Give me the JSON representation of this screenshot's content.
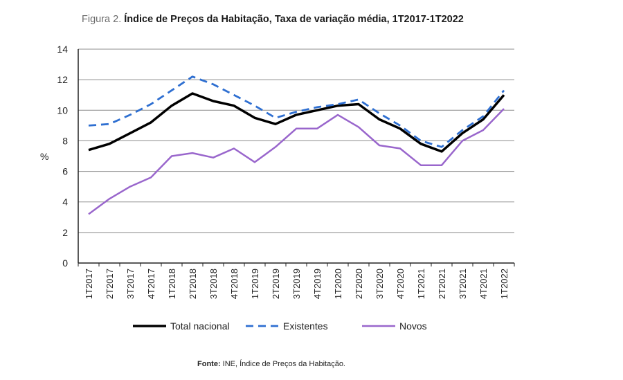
{
  "figure": {
    "label": "Figura 2.",
    "title": "Índice de Preços da Habitação, Taxa de variação média, 1T2017-1T2022"
  },
  "source": {
    "label": "Fonte:",
    "text": "INE, Índice de Preços da Habitação."
  },
  "chart_data": {
    "type": "line",
    "ylabel": "%",
    "ylim": [
      0,
      14
    ],
    "yticks": [
      0,
      2,
      4,
      6,
      8,
      10,
      12,
      14
    ],
    "grid": true,
    "legend_position": "bottom",
    "categories": [
      "1T2017",
      "2T2017",
      "3T2017",
      "4T2017",
      "1T2018",
      "2T2018",
      "3T2018",
      "4T2018",
      "1T2019",
      "2T2019",
      "3T2019",
      "4T2019",
      "1T2020",
      "2T2020",
      "3T2020",
      "4T2020",
      "1T2021",
      "2T2021",
      "3T2021",
      "4T2021",
      "1T2022"
    ],
    "series": [
      {
        "name": "Total nacional",
        "color": "#000000",
        "style": "solid",
        "values": [
          7.4,
          7.8,
          8.5,
          9.2,
          10.3,
          11.1,
          10.6,
          10.3,
          9.5,
          9.1,
          9.7,
          10.0,
          10.3,
          10.4,
          9.4,
          8.8,
          7.8,
          7.3,
          8.5,
          9.4,
          11.0
        ]
      },
      {
        "name": "Existentes",
        "color": "#2e6fd1",
        "style": "dashed",
        "values": [
          9.0,
          9.1,
          9.7,
          10.4,
          11.3,
          12.2,
          11.7,
          11.0,
          10.3,
          9.5,
          9.9,
          10.2,
          10.4,
          10.7,
          9.8,
          9.0,
          8.0,
          7.6,
          8.7,
          9.6,
          11.3
        ]
      },
      {
        "name": "Novos",
        "color": "#9966cc",
        "style": "solid",
        "values": [
          3.2,
          4.2,
          5.0,
          5.6,
          7.0,
          7.2,
          6.9,
          7.5,
          6.6,
          7.6,
          8.8,
          8.8,
          9.7,
          8.9,
          7.7,
          7.5,
          6.4,
          6.4,
          8.0,
          8.7,
          10.1
        ]
      }
    ]
  }
}
